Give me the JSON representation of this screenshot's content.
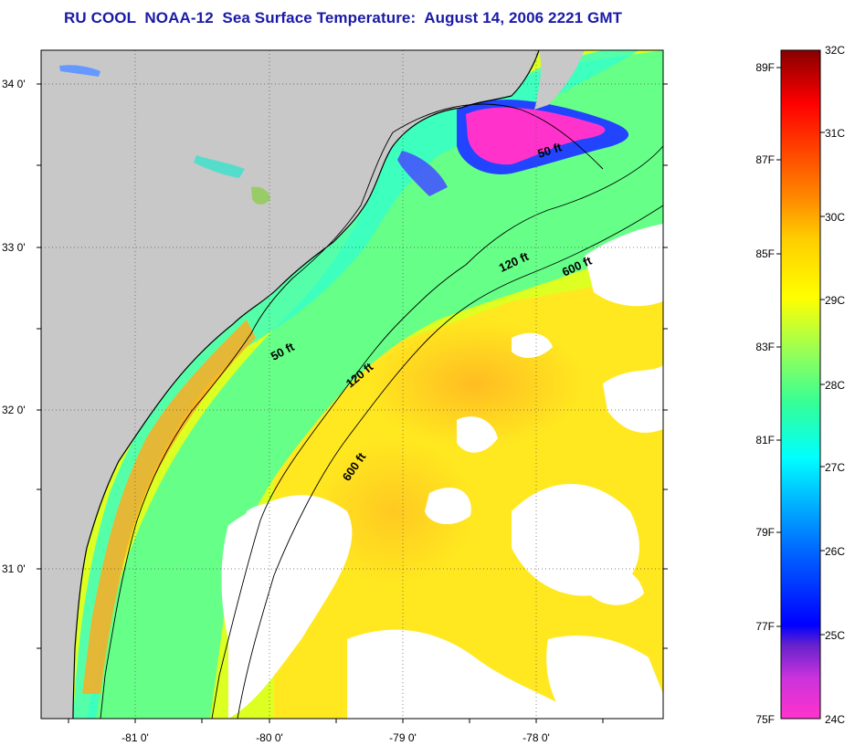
{
  "title": "RU COOL  NOAA-12  Sea Surface Temperature:  August 14, 2006 2221 GMT",
  "axes": {
    "lat_ticks": [
      "34 0'",
      "33 0'",
      "32 0'",
      "31 0'"
    ],
    "lon_ticks": [
      "-81 0'",
      "-80 0'",
      "-79 0'",
      "-78 0'"
    ]
  },
  "contour_labels": {
    "c50_north": "50 ft",
    "c50_south": "50 ft",
    "c120_north": "120 ft",
    "c120_south": "120 ft",
    "c600_north": "600 ft",
    "c600_south": "600 ft"
  },
  "colorbar": {
    "celsius": [
      "32C",
      "31C",
      "30C",
      "29C",
      "28C",
      "27C",
      "26C",
      "25C",
      "24C"
    ],
    "fahrenheit": [
      "89F",
      "87F",
      "85F",
      "83F",
      "81F",
      "79F",
      "77F",
      "75F"
    ]
  },
  "colors": {
    "land": "#c8c8c8",
    "no_data": "#ffffff",
    "title": "#1a1aa8",
    "scale": [
      "#ff33cc",
      "#aa44dd",
      "#0000ff",
      "#0077ff",
      "#00ffff",
      "#33ff99",
      "#aaff33",
      "#ffff00",
      "#ffaa00",
      "#ff5500",
      "#ff0000",
      "#990000"
    ]
  }
}
